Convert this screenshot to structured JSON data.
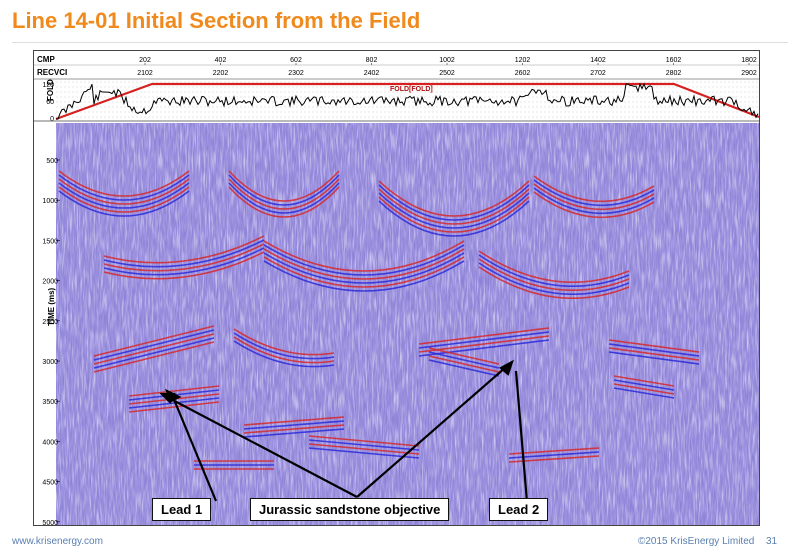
{
  "slide": {
    "title": "Line 14-01 Initial Section from the Field",
    "footer_url": "www.krisenergy.com",
    "footer_copyright": "©2015 KrisEnergy Limited",
    "page_number": "31"
  },
  "header_rows": {
    "cmp_label": "CMP",
    "recv_label": "RECVCI",
    "cmp_ticks": [
      "202",
      "402",
      "602",
      "802",
      "1002",
      "1202",
      "1402",
      "1602",
      "1802"
    ],
    "recv_ticks": [
      "2102",
      "2202",
      "2302",
      "2402",
      "2502",
      "2602",
      "2702",
      "2802",
      "2902"
    ]
  },
  "fold_panel": {
    "axis_label": "FOLD",
    "legend": "FOLD[FOLD]",
    "ticks": [
      "120",
      "60",
      "0"
    ],
    "trace_color": "#000000",
    "nominal_color": "#d62020"
  },
  "section": {
    "axis_label": "TIME (ms)",
    "time_ticks": [
      "500",
      "1000",
      "1500",
      "2000",
      "2500",
      "3000",
      "3500",
      "4000",
      "4500",
      "5000"
    ],
    "colors": {
      "positive": "#d6282a",
      "negative": "#2a2ad8",
      "base": "#7a6ad0"
    }
  },
  "annotations": {
    "lead1": "Lead 1",
    "objective": "Jurassic sandstone objective",
    "lead2": "Lead 2"
  }
}
